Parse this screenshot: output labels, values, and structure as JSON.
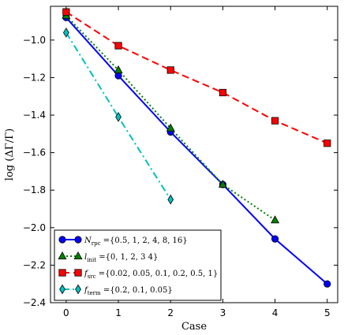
{
  "chart_data": {
    "type": "line",
    "xlabel": "Case",
    "ylabel": "log (ΔΓ/Γ)",
    "xlim": [
      -0.3,
      5.2
    ],
    "ylim": [
      -2.4,
      -0.82
    ],
    "xticks": [
      0,
      1,
      2,
      3,
      4,
      5
    ],
    "yticks": [
      -2.4,
      -2.2,
      -2.0,
      -1.8,
      -1.6,
      -1.4,
      -1.2,
      -1.0
    ],
    "ytick_labels": [
      "−2.4",
      "−2.2",
      "−2.0",
      "−1.8",
      "−1.6",
      "−1.4",
      "−1.2",
      "−1.0"
    ],
    "grid": false,
    "legend_position": "lower-left",
    "series": [
      {
        "key": "rpc",
        "legend_symbol": "N",
        "legend_sub": "rpc",
        "legend_rest": " ={0.5, 1, 2, 4, 8, 16}",
        "color": "#0000ff",
        "marker": "circle",
        "linestyle": "solid",
        "x": [
          0,
          1,
          2,
          3,
          4,
          5
        ],
        "y": [
          -0.88,
          -1.19,
          -1.49,
          -1.77,
          -2.06,
          -2.3
        ]
      },
      {
        "key": "init",
        "legend_symbol": "l",
        "legend_sub": "init",
        "legend_rest": " ={0, 1, 2, 3 4}",
        "color": "#008000",
        "marker": "triangle",
        "linestyle": "dotted",
        "x": [
          0,
          1,
          2,
          3,
          4
        ],
        "y": [
          -0.87,
          -1.16,
          -1.47,
          -1.77,
          -1.96
        ]
      },
      {
        "key": "src",
        "legend_symbol": "f",
        "legend_sub": "src",
        "legend_rest": " ={0.02, 0.05, 0.1, 0.2, 0.5, 1}",
        "color": "#ff0000",
        "marker": "square",
        "linestyle": "dashed",
        "x": [
          0,
          1,
          2,
          3,
          4,
          5
        ],
        "y": [
          -0.85,
          -1.03,
          -1.16,
          -1.28,
          -1.43,
          -1.55
        ]
      },
      {
        "key": "term",
        "legend_symbol": "f",
        "legend_sub": "term",
        "legend_rest": " ={0.2, 0.1, 0.05}",
        "color": "#00bfbf",
        "marker": "diamond",
        "linestyle": "dashdot",
        "x": [
          0,
          1,
          2
        ],
        "y": [
          -0.96,
          -1.41,
          -1.85
        ]
      }
    ]
  }
}
